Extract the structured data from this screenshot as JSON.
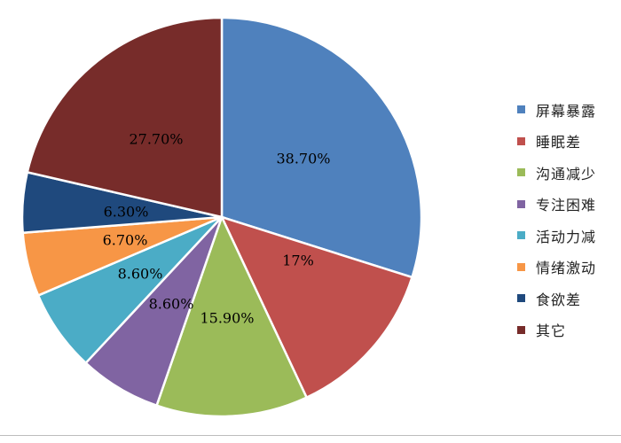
{
  "chart_data": {
    "type": "pie",
    "slices": [
      {
        "label": "屏幕暴露",
        "value": 38.7,
        "value_label": "38.70%",
        "color": "#4F81BD"
      },
      {
        "label": "睡眠差",
        "value": 17.0,
        "value_label": "17%",
        "color": "#C0504D"
      },
      {
        "label": "沟通减少",
        "value": 15.9,
        "value_label": "15.90%",
        "color": "#9BBB59"
      },
      {
        "label": "专注困难",
        "value": 8.6,
        "value_label": "8.60%",
        "color": "#8064A2"
      },
      {
        "label": "活动力减",
        "value": 8.6,
        "value_label": "8.60%",
        "color": "#4BACC6"
      },
      {
        "label": "情绪激动",
        "value": 6.7,
        "value_label": "6.70%",
        "color": "#F79646"
      },
      {
        "label": "食欲差",
        "value": 6.3,
        "value_label": "6.30%",
        "color": "#1F497D"
      },
      {
        "label": "其它",
        "value": 27.7,
        "value_label": "27.70%",
        "color": "#772C2A"
      }
    ],
    "start_direction": "12 o'clock",
    "direction": "clockwise",
    "legend_position": "right"
  }
}
